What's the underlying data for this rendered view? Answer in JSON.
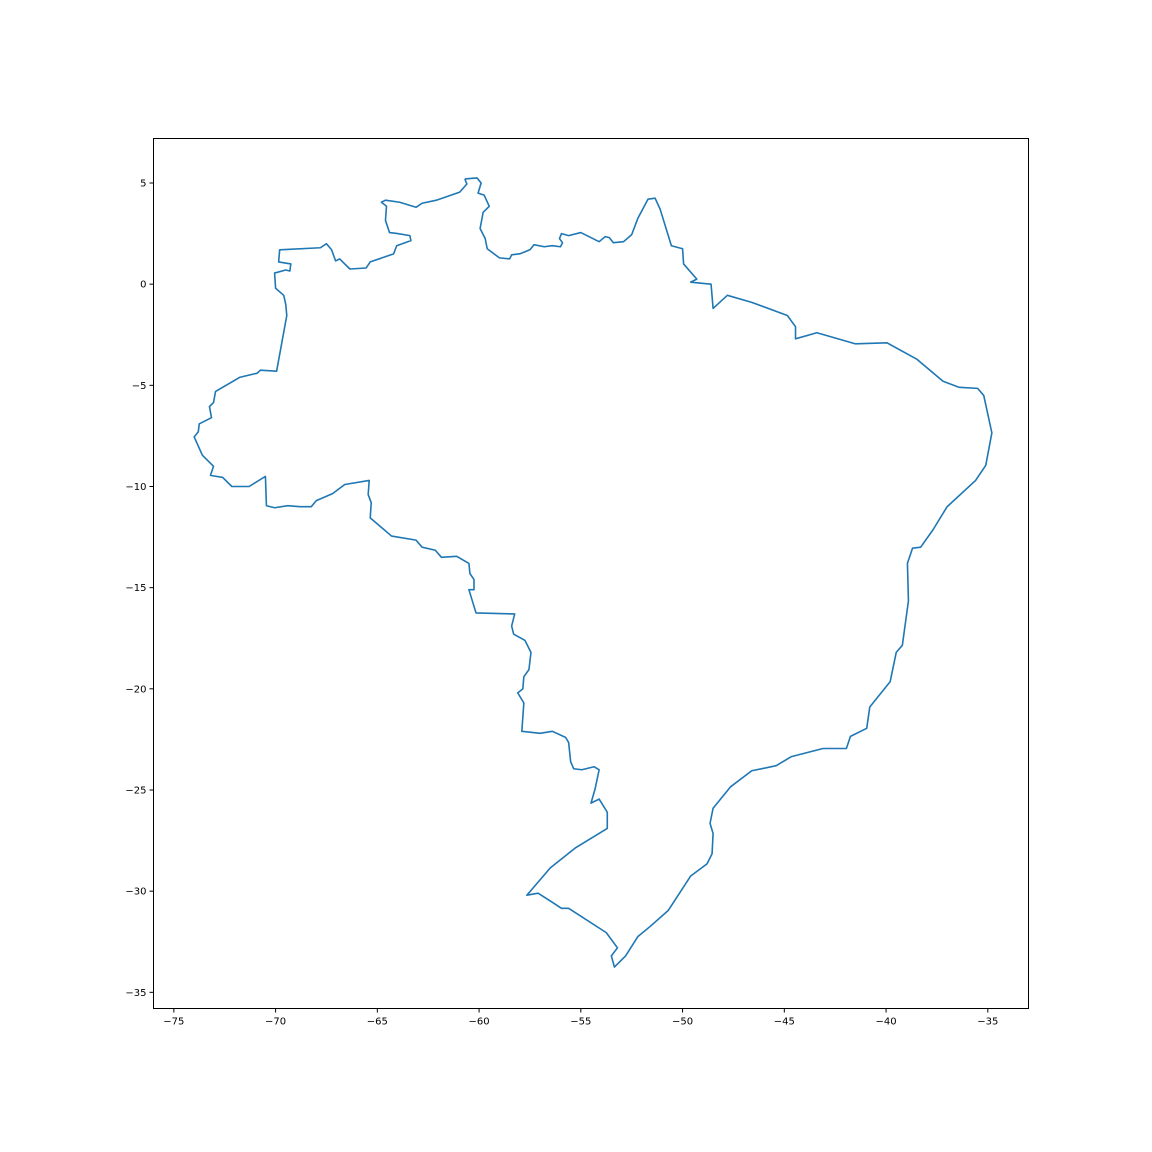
{
  "chart_data": {
    "type": "line",
    "title": "",
    "xlabel": "",
    "ylabel": "",
    "xlim": [
      -76,
      -33
    ],
    "ylim": [
      -35.8,
      7.2
    ],
    "grid": false,
    "legend": "none",
    "xticks": [
      -75,
      -70,
      -65,
      -60,
      -55,
      -50,
      -45,
      -40,
      -35
    ],
    "yticks": [
      5,
      0,
      -5,
      -10,
      -15,
      -20,
      -25,
      -30,
      -35
    ],
    "xtick_labels": [
      "−75",
      "−70",
      "−65",
      "−60",
      "−55",
      "−50",
      "−45",
      "−40",
      "−35"
    ],
    "ytick_labels": [
      "5",
      "0",
      "−5",
      "−10",
      "−15",
      "−20",
      "−25",
      "−30",
      "−35"
    ],
    "series": [
      {
        "color": "#1f77b4",
        "points": [
          [
            -60.7,
            5.2
          ],
          [
            -60.1,
            5.25
          ],
          [
            -59.9,
            5.0
          ],
          [
            -60.05,
            4.5
          ],
          [
            -59.75,
            4.4
          ],
          [
            -59.5,
            3.85
          ],
          [
            -59.8,
            3.55
          ],
          [
            -59.95,
            2.75
          ],
          [
            -59.7,
            2.25
          ],
          [
            -59.6,
            1.75
          ],
          [
            -59.0,
            1.3
          ],
          [
            -58.5,
            1.25
          ],
          [
            -58.4,
            1.45
          ],
          [
            -58.0,
            1.5
          ],
          [
            -57.5,
            1.7
          ],
          [
            -57.3,
            1.95
          ],
          [
            -56.8,
            1.85
          ],
          [
            -56.4,
            1.9
          ],
          [
            -56.0,
            1.85
          ],
          [
            -55.9,
            2.05
          ],
          [
            -56.05,
            2.25
          ],
          [
            -55.95,
            2.5
          ],
          [
            -55.6,
            2.4
          ],
          [
            -55.0,
            2.55
          ],
          [
            -54.1,
            2.1
          ],
          [
            -53.8,
            2.35
          ],
          [
            -53.6,
            2.3
          ],
          [
            -53.4,
            2.05
          ],
          [
            -52.9,
            2.1
          ],
          [
            -52.5,
            2.45
          ],
          [
            -52.2,
            3.25
          ],
          [
            -51.7,
            4.2
          ],
          [
            -51.35,
            4.25
          ],
          [
            -51.1,
            3.7
          ],
          [
            -50.55,
            1.9
          ],
          [
            -50.0,
            1.75
          ],
          [
            -49.95,
            1.0
          ],
          [
            -49.3,
            0.25
          ],
          [
            -49.6,
            0.1
          ],
          [
            -48.6,
            0.0
          ],
          [
            -48.5,
            -1.2
          ],
          [
            -47.8,
            -0.55
          ],
          [
            -46.6,
            -0.9
          ],
          [
            -44.85,
            -1.55
          ],
          [
            -44.45,
            -2.1
          ],
          [
            -44.45,
            -2.7
          ],
          [
            -43.4,
            -2.4
          ],
          [
            -41.5,
            -2.95
          ],
          [
            -39.95,
            -2.9
          ],
          [
            -38.5,
            -3.7
          ],
          [
            -37.2,
            -4.8
          ],
          [
            -36.4,
            -5.1
          ],
          [
            -35.5,
            -5.15
          ],
          [
            -35.2,
            -5.5
          ],
          [
            -34.8,
            -7.35
          ],
          [
            -35.1,
            -8.95
          ],
          [
            -35.6,
            -9.7
          ],
          [
            -37.0,
            -11.0
          ],
          [
            -37.7,
            -12.15
          ],
          [
            -38.3,
            -13.0
          ],
          [
            -38.7,
            -13.05
          ],
          [
            -38.95,
            -13.8
          ],
          [
            -38.9,
            -15.65
          ],
          [
            -39.2,
            -17.85
          ],
          [
            -39.5,
            -18.2
          ],
          [
            -39.8,
            -19.65
          ],
          [
            -40.8,
            -20.9
          ],
          [
            -40.95,
            -21.95
          ],
          [
            -41.75,
            -22.35
          ],
          [
            -41.95,
            -22.95
          ],
          [
            -43.1,
            -22.95
          ],
          [
            -44.65,
            -23.35
          ],
          [
            -45.4,
            -23.8
          ],
          [
            -46.6,
            -24.05
          ],
          [
            -47.65,
            -24.85
          ],
          [
            -48.5,
            -25.9
          ],
          [
            -48.65,
            -26.65
          ],
          [
            -48.5,
            -27.15
          ],
          [
            -48.55,
            -28.15
          ],
          [
            -48.8,
            -28.65
          ],
          [
            -49.6,
            -29.25
          ],
          [
            -50.7,
            -30.95
          ],
          [
            -51.6,
            -31.75
          ],
          [
            -52.2,
            -32.25
          ],
          [
            -52.8,
            -33.2
          ],
          [
            -53.35,
            -33.75
          ],
          [
            -53.5,
            -33.2
          ],
          [
            -53.2,
            -32.8
          ],
          [
            -53.75,
            -32.05
          ],
          [
            -55.6,
            -30.85
          ],
          [
            -55.95,
            -30.85
          ],
          [
            -56.4,
            -30.55
          ],
          [
            -57.1,
            -30.1
          ],
          [
            -57.65,
            -30.2
          ],
          [
            -56.5,
            -28.85
          ],
          [
            -55.25,
            -27.85
          ],
          [
            -53.7,
            -26.9
          ],
          [
            -53.7,
            -26.1
          ],
          [
            -54.1,
            -25.45
          ],
          [
            -54.5,
            -25.65
          ],
          [
            -54.3,
            -24.95
          ],
          [
            -54.1,
            -24.0
          ],
          [
            -54.35,
            -23.85
          ],
          [
            -54.95,
            -24.0
          ],
          [
            -55.35,
            -23.95
          ],
          [
            -55.5,
            -23.6
          ],
          [
            -55.6,
            -22.65
          ],
          [
            -55.75,
            -22.4
          ],
          [
            -56.4,
            -22.1
          ],
          [
            -57.0,
            -22.2
          ],
          [
            -57.9,
            -22.1
          ],
          [
            -57.8,
            -20.7
          ],
          [
            -58.1,
            -20.2
          ],
          [
            -57.85,
            -20.0
          ],
          [
            -57.8,
            -19.4
          ],
          [
            -57.55,
            -19.05
          ],
          [
            -57.45,
            -18.2
          ],
          [
            -57.75,
            -17.6
          ],
          [
            -58.3,
            -17.3
          ],
          [
            -58.4,
            -16.9
          ],
          [
            -58.25,
            -16.3
          ],
          [
            -60.15,
            -16.25
          ],
          [
            -60.5,
            -15.1
          ],
          [
            -60.25,
            -15.1
          ],
          [
            -60.25,
            -14.6
          ],
          [
            -60.45,
            -14.3
          ],
          [
            -60.5,
            -13.8
          ],
          [
            -61.1,
            -13.45
          ],
          [
            -61.85,
            -13.5
          ],
          [
            -62.15,
            -13.15
          ],
          [
            -62.8,
            -13.0
          ],
          [
            -63.1,
            -12.65
          ],
          [
            -64.3,
            -12.45
          ],
          [
            -65.35,
            -11.55
          ],
          [
            -65.3,
            -10.8
          ],
          [
            -65.45,
            -10.4
          ],
          [
            -65.4,
            -9.7
          ],
          [
            -66.6,
            -9.9
          ],
          [
            -67.2,
            -10.35
          ],
          [
            -68.0,
            -10.7
          ],
          [
            -68.25,
            -11.0
          ],
          [
            -68.8,
            -11.0
          ],
          [
            -69.4,
            -10.95
          ],
          [
            -70.05,
            -11.05
          ],
          [
            -70.45,
            -10.95
          ],
          [
            -70.5,
            -9.5
          ],
          [
            -71.3,
            -10.0
          ],
          [
            -72.15,
            -10.0
          ],
          [
            -72.6,
            -9.55
          ],
          [
            -73.2,
            -9.45
          ],
          [
            -73.05,
            -9.0
          ],
          [
            -73.6,
            -8.45
          ],
          [
            -74.0,
            -7.55
          ],
          [
            -73.8,
            -7.3
          ],
          [
            -73.75,
            -6.9
          ],
          [
            -73.15,
            -6.6
          ],
          [
            -73.25,
            -6.05
          ],
          [
            -73.05,
            -5.85
          ],
          [
            -72.95,
            -5.3
          ],
          [
            -71.75,
            -4.6
          ],
          [
            -70.9,
            -4.4
          ],
          [
            -70.75,
            -4.25
          ],
          [
            -69.95,
            -4.3
          ],
          [
            -69.45,
            -1.55
          ],
          [
            -69.5,
            -1.0
          ],
          [
            -69.6,
            -0.55
          ],
          [
            -70.0,
            -0.2
          ],
          [
            -70.05,
            0.55
          ],
          [
            -69.5,
            0.7
          ],
          [
            -69.3,
            0.65
          ],
          [
            -69.25,
            1.0
          ],
          [
            -69.85,
            1.1
          ],
          [
            -69.8,
            1.7
          ],
          [
            -67.8,
            1.8
          ],
          [
            -67.5,
            2.0
          ],
          [
            -67.25,
            1.7
          ],
          [
            -67.05,
            1.15
          ],
          [
            -66.85,
            1.25
          ],
          [
            -66.35,
            0.75
          ],
          [
            -65.55,
            0.8
          ],
          [
            -65.35,
            1.1
          ],
          [
            -64.2,
            1.5
          ],
          [
            -64.05,
            1.9
          ],
          [
            -63.35,
            2.15
          ],
          [
            -63.4,
            2.4
          ],
          [
            -64.0,
            2.5
          ],
          [
            -64.4,
            2.55
          ],
          [
            -64.6,
            3.15
          ],
          [
            -64.55,
            3.85
          ],
          [
            -64.8,
            4.05
          ],
          [
            -64.6,
            4.15
          ],
          [
            -63.9,
            4.05
          ],
          [
            -63.1,
            3.8
          ],
          [
            -62.8,
            4.0
          ],
          [
            -62.1,
            4.15
          ],
          [
            -60.95,
            4.55
          ],
          [
            -60.6,
            4.95
          ],
          [
            -60.7,
            5.2
          ]
        ]
      }
    ]
  }
}
